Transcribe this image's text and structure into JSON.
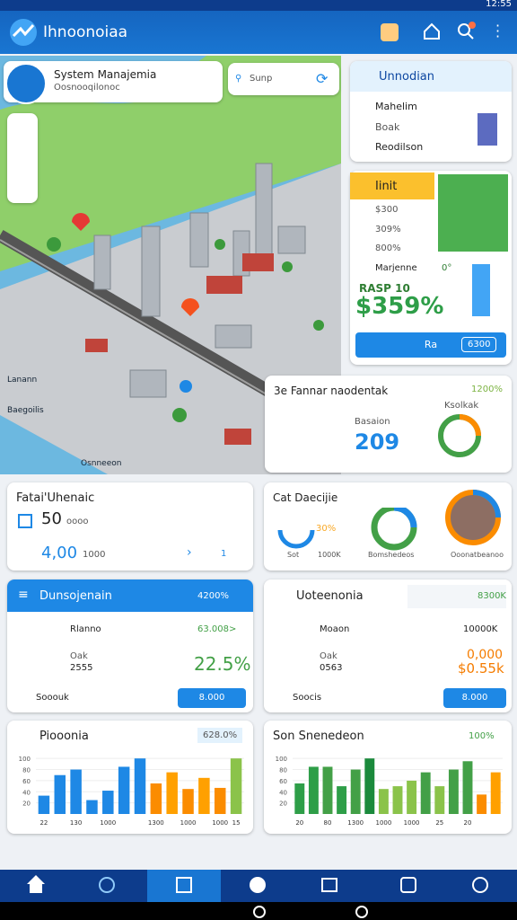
{
  "status_bar": {
    "time": "12:55"
  },
  "app_bar": {
    "title": "Ihnoonoiaa"
  },
  "map": {
    "info_card": {
      "title": "System Manajemia",
      "subtitle": "Oosnooqilonoc"
    },
    "search": "Sunp",
    "labels": [
      "Lanann",
      "Baegoilis",
      "Osnneeon"
    ]
  },
  "side_panel": {
    "title": "Unnodian",
    "items": [
      "Mahelim",
      "Boak",
      "Reodilson"
    ]
  },
  "promo_card": {
    "tag": "Iinit",
    "items": [
      "$300",
      "309%",
      "800%"
    ],
    "name": "Marjenne",
    "note": "0°",
    "label": "RASP 10",
    "value": "$359%",
    "button": "Ra",
    "button_value": "6300"
  },
  "stat_card": {
    "title": "3e Fannar naodentak",
    "badge": "1200%",
    "sublabel": "Ksolkak",
    "label": "Basaion",
    "value": "209"
  },
  "overview_card": {
    "title": "Fatai'Uhenaic",
    "value": "50",
    "value_note": "oooo",
    "amount": "4,00",
    "amount_note": "1000",
    "page": "1"
  },
  "donut_card": {
    "title": "Cat Daecijie",
    "percent": "30%",
    "legend": [
      "Sot",
      "1000K",
      "Bomshedeos",
      "Ooonatbeanoo"
    ]
  },
  "list_left": {
    "title": "Dunsojenain",
    "badge": "4200%",
    "rows": [
      {
        "label": "Rlanno",
        "value": "63.008>"
      },
      {
        "label": "Oak",
        "sub": "2555",
        "value": "22.5%"
      }
    ],
    "footer": "Sooouk",
    "button": "8.000"
  },
  "list_right": {
    "title": "Uoteenonia",
    "badge": "8300K",
    "rows": [
      {
        "label": "Moaon",
        "value": "10000K"
      },
      {
        "label": "Oak",
        "sub": "0563",
        "value": "0,000",
        "value2": "$0.55k"
      }
    ],
    "footer": "Soocis",
    "button": "8.000"
  },
  "charts": [
    {
      "type": "bar",
      "title": "Piooonia",
      "badge": "628.0%",
      "ylim": [
        0,
        110
      ],
      "yticks": [
        20,
        40,
        60,
        80,
        100
      ],
      "categories": [
        "22",
        null,
        "130",
        null,
        "1000",
        null,
        null,
        "1300",
        null,
        "1000",
        null,
        "1000",
        "15"
      ],
      "values": [
        33,
        70,
        80,
        25,
        42,
        85,
        100,
        55,
        75,
        45,
        65,
        47,
        100
      ],
      "colors": [
        "#1e88e5",
        "#1e88e5",
        "#1e88e5",
        "#1e88e5",
        "#1e88e5",
        "#1e88e5",
        "#1e88e5",
        "#fb8c00",
        "#ffa000",
        "#fb8c00",
        "#ffa000",
        "#fb8c00",
        "#8bc34a"
      ]
    },
    {
      "type": "bar",
      "title": "Son Snenedeon",
      "badge": "100%",
      "ylim": [
        0,
        110
      ],
      "yticks": [
        20,
        40,
        60,
        80,
        100
      ],
      "categories": [
        "20",
        null,
        "80",
        null,
        "1300",
        null,
        "1000",
        null,
        "1000",
        null,
        "25",
        null,
        "20",
        null,
        null
      ],
      "values": [
        55,
        85,
        85,
        50,
        80,
        100,
        45,
        50,
        60,
        75,
        50,
        80,
        95,
        35,
        75
      ],
      "colors": [
        "#2e9e48",
        "#2e9e48",
        "#43a047",
        "#2e9e48",
        "#43a047",
        "#1b8a3c",
        "#8bc34a",
        "#8bc34a",
        "#8bc34a",
        "#43a047",
        "#8bc34a",
        "#43a047",
        "#43a047",
        "#fb8c00",
        "#ffa000"
      ]
    }
  ]
}
